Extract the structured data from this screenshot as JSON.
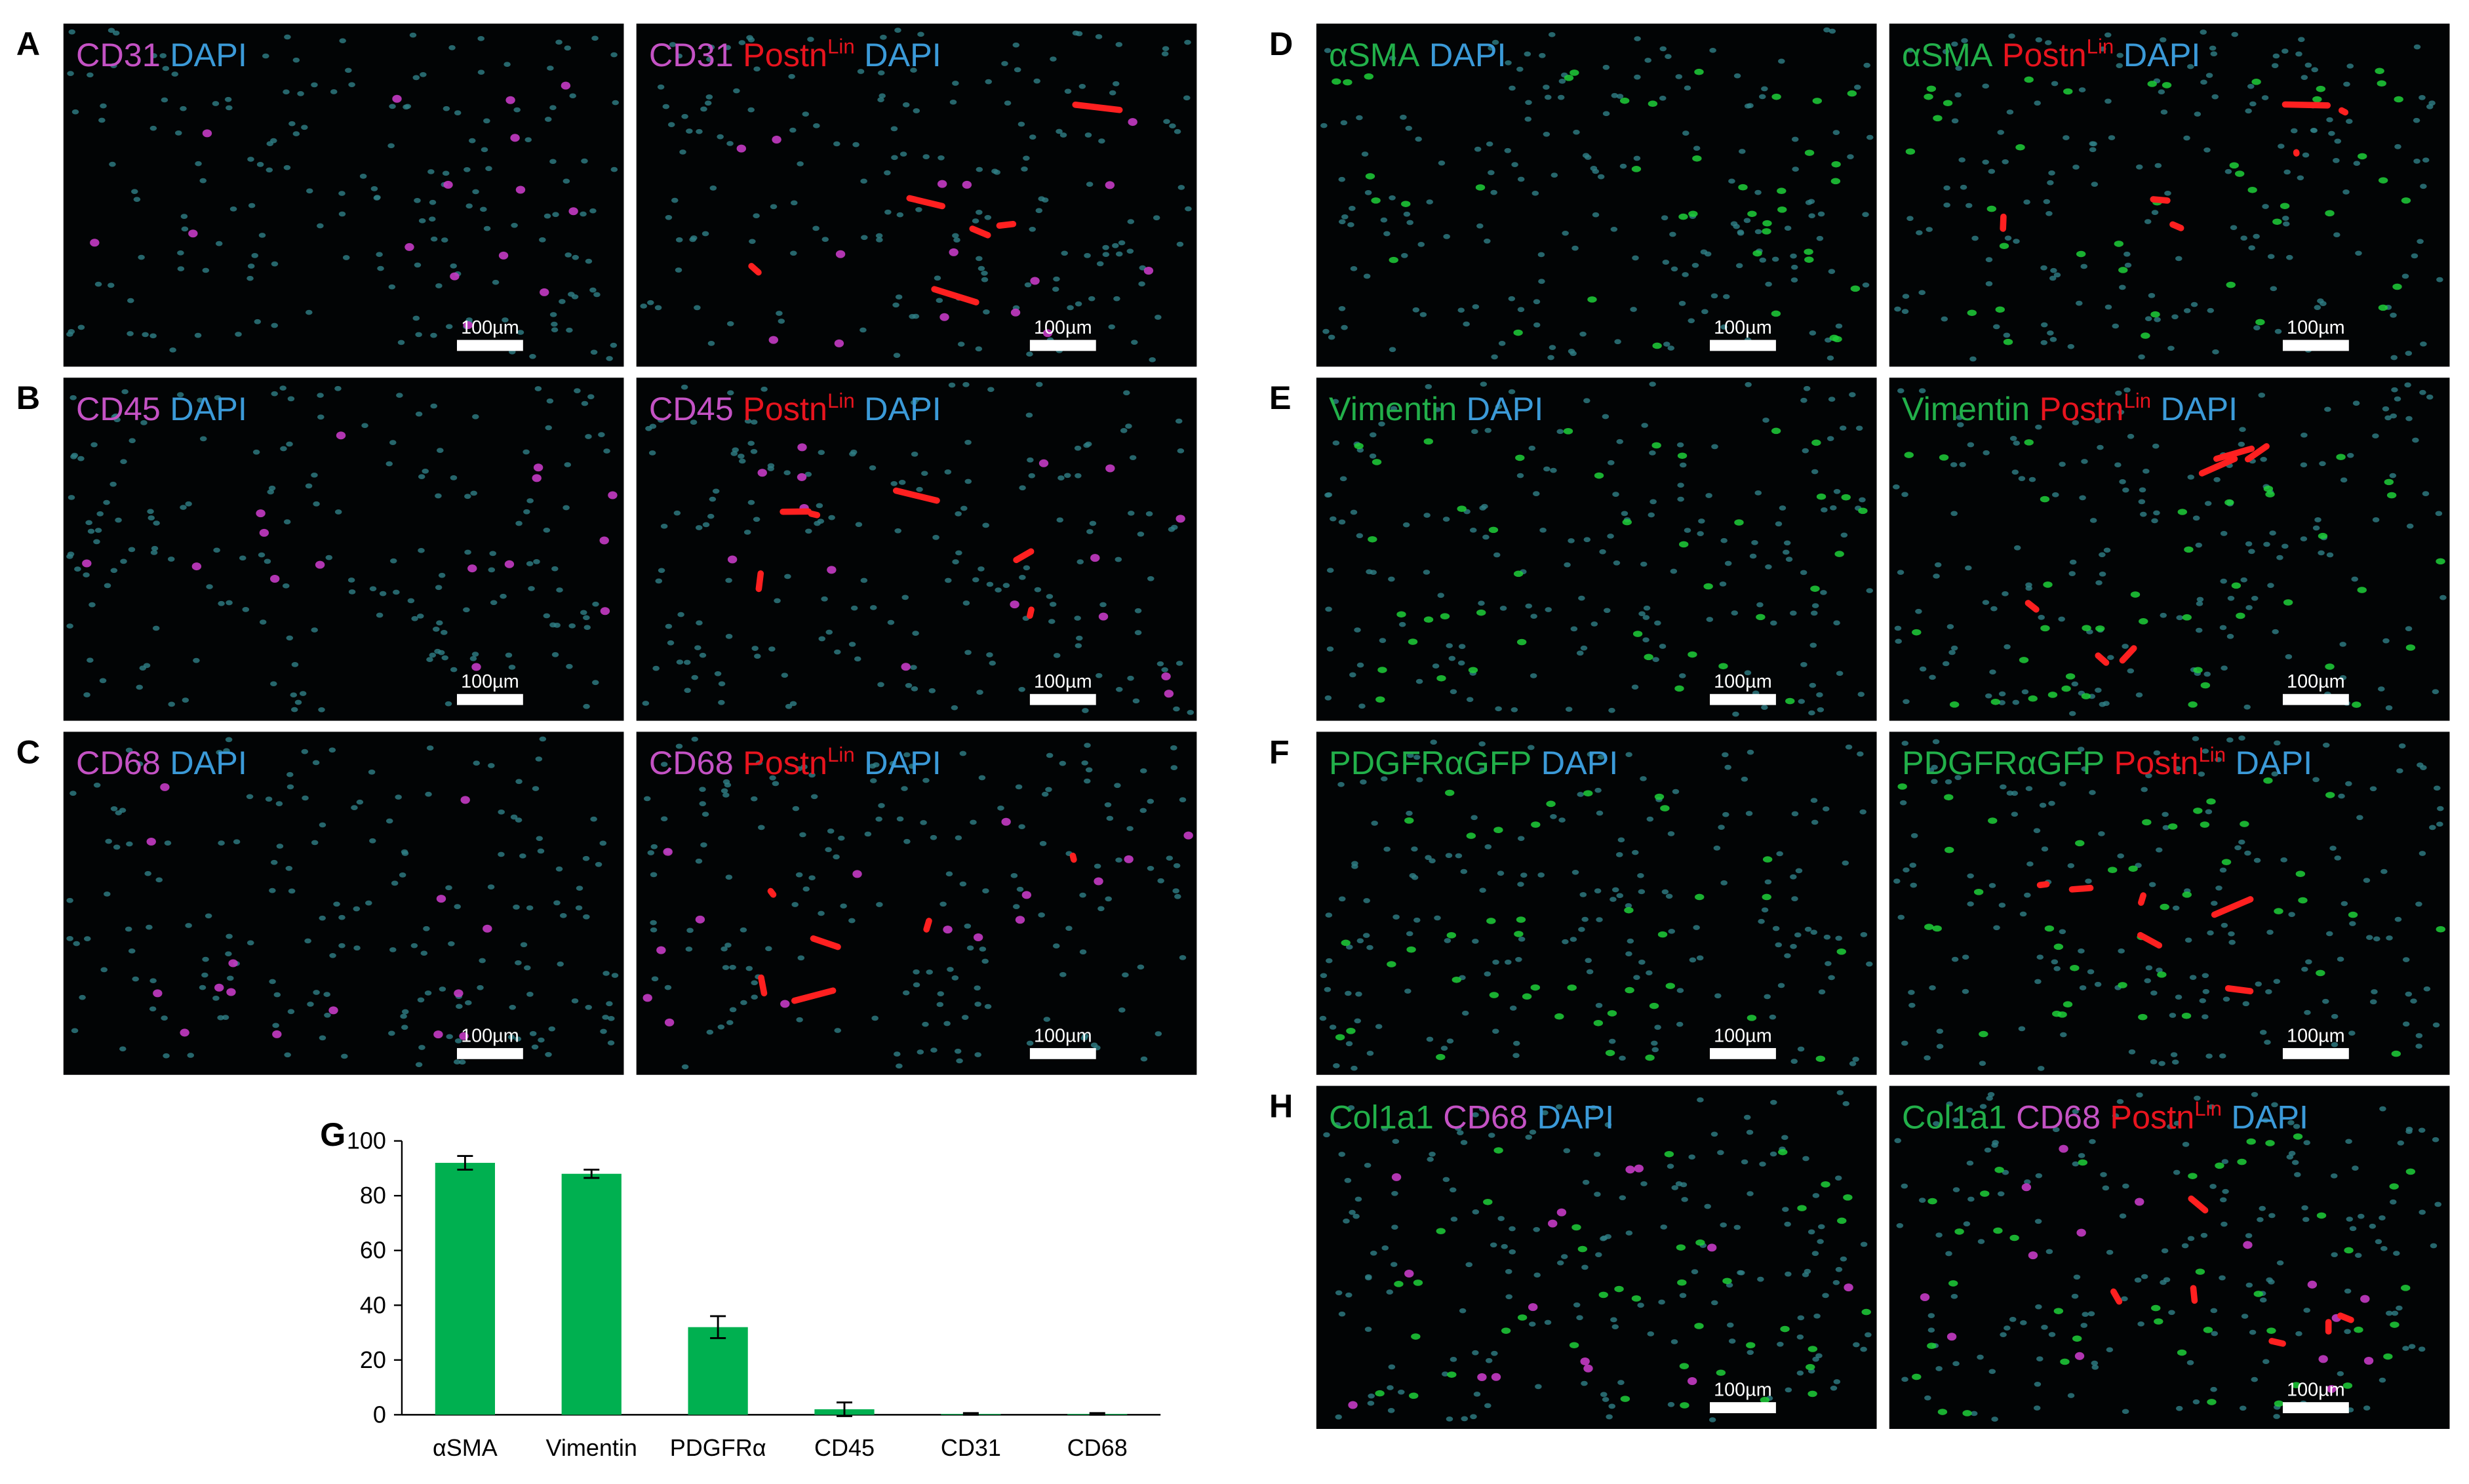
{
  "panels": [
    {
      "letter": "A",
      "images": [
        {
          "caption": [
            {
              "text": "CD31",
              "color": "#c452c4"
            },
            {
              "text": "DAPI",
              "color": "#3b9ad8"
            }
          ],
          "scale": "100µm"
        },
        {
          "caption": [
            {
              "text": "CD31",
              "color": "#c452c4"
            },
            {
              "text": "Postn",
              "sup": "Lin",
              "color": "#e8141e"
            },
            {
              "text": "DAPI",
              "color": "#3b9ad8"
            }
          ],
          "scale": "100µm"
        }
      ]
    },
    {
      "letter": "B",
      "images": [
        {
          "caption": [
            {
              "text": "CD45",
              "color": "#c452c4"
            },
            {
              "text": "DAPI",
              "color": "#3b9ad8"
            }
          ],
          "scale": "100µm"
        },
        {
          "caption": [
            {
              "text": "CD45",
              "color": "#c452c4"
            },
            {
              "text": "Postn",
              "sup": "Lin",
              "color": "#e8141e"
            },
            {
              "text": "DAPI",
              "color": "#3b9ad8"
            }
          ],
          "scale": "100µm"
        }
      ]
    },
    {
      "letter": "C",
      "images": [
        {
          "caption": [
            {
              "text": "CD68",
              "color": "#c452c4"
            },
            {
              "text": "DAPI",
              "color": "#3b9ad8"
            }
          ],
          "scale": "100µm"
        },
        {
          "caption": [
            {
              "text": "CD68",
              "color": "#c452c4"
            },
            {
              "text": "Postn",
              "sup": "Lin",
              "color": "#e8141e"
            },
            {
              "text": "DAPI",
              "color": "#3b9ad8"
            }
          ],
          "scale": "100µm"
        }
      ]
    },
    {
      "letter": "D",
      "images": [
        {
          "caption": [
            {
              "text": "αSMA",
              "color": "#22b04a"
            },
            {
              "text": "DAPI",
              "color": "#3b9ad8"
            }
          ],
          "scale": "100µm"
        },
        {
          "caption": [
            {
              "text": "αSMA",
              "color": "#22b04a"
            },
            {
              "text": "Postn",
              "sup": "Lin",
              "color": "#e8141e"
            },
            {
              "text": "DAPI",
              "color": "#3b9ad8"
            }
          ],
          "scale": "100µm"
        }
      ]
    },
    {
      "letter": "E",
      "images": [
        {
          "caption": [
            {
              "text": "Vimentin",
              "color": "#22b04a"
            },
            {
              "text": "DAPI",
              "color": "#3b9ad8"
            }
          ],
          "scale": "100µm"
        },
        {
          "caption": [
            {
              "text": "Vimentin",
              "color": "#22b04a"
            },
            {
              "text": "Postn",
              "sup": "Lin",
              "color": "#e8141e"
            },
            {
              "text": "DAPI",
              "color": "#3b9ad8"
            }
          ],
          "scale": "100µm"
        }
      ]
    },
    {
      "letter": "F",
      "images": [
        {
          "caption": [
            {
              "text": "PDGFRαGFP",
              "color": "#22b04a"
            },
            {
              "text": "DAPI",
              "color": "#3b9ad8"
            }
          ],
          "scale": "100µm"
        },
        {
          "caption": [
            {
              "text": "PDGFRαGFP",
              "color": "#22b04a"
            },
            {
              "text": "Postn",
              "sup": "Lin",
              "color": "#e8141e"
            },
            {
              "text": "DAPI",
              "color": "#3b9ad8"
            }
          ],
          "scale": "100µm"
        }
      ]
    },
    {
      "letter": "H",
      "images": [
        {
          "caption": [
            {
              "text": "Col1a1",
              "color": "#22b04a"
            },
            {
              "text": "CD68",
              "color": "#c452c4"
            },
            {
              "text": "DAPI",
              "color": "#3b9ad8"
            }
          ],
          "scale": "100µm"
        },
        {
          "caption": [
            {
              "text": "Col1a1",
              "color": "#22b04a"
            },
            {
              "text": "CD68",
              "color": "#c452c4"
            },
            {
              "text": "Postn",
              "sup": "Lin",
              "color": "#e8141e"
            },
            {
              "text": "DAPI",
              "color": "#3b9ad8"
            }
          ],
          "scale": "100µm"
        }
      ]
    }
  ],
  "chart_data": {
    "type": "bar",
    "label": "G",
    "categories": [
      "αSMA",
      "Vimentin",
      "PDGFRα",
      "CD45",
      "CD31",
      "CD68"
    ],
    "values": [
      92,
      88,
      32,
      2,
      0.3,
      0.3
    ],
    "errors": [
      2.5,
      1.5,
      4,
      2.5,
      0.3,
      0.3
    ],
    "color": "#00b050",
    "ylim": [
      0,
      100
    ],
    "yticks": [
      0,
      20,
      40,
      60,
      80,
      100
    ],
    "grid": false
  }
}
